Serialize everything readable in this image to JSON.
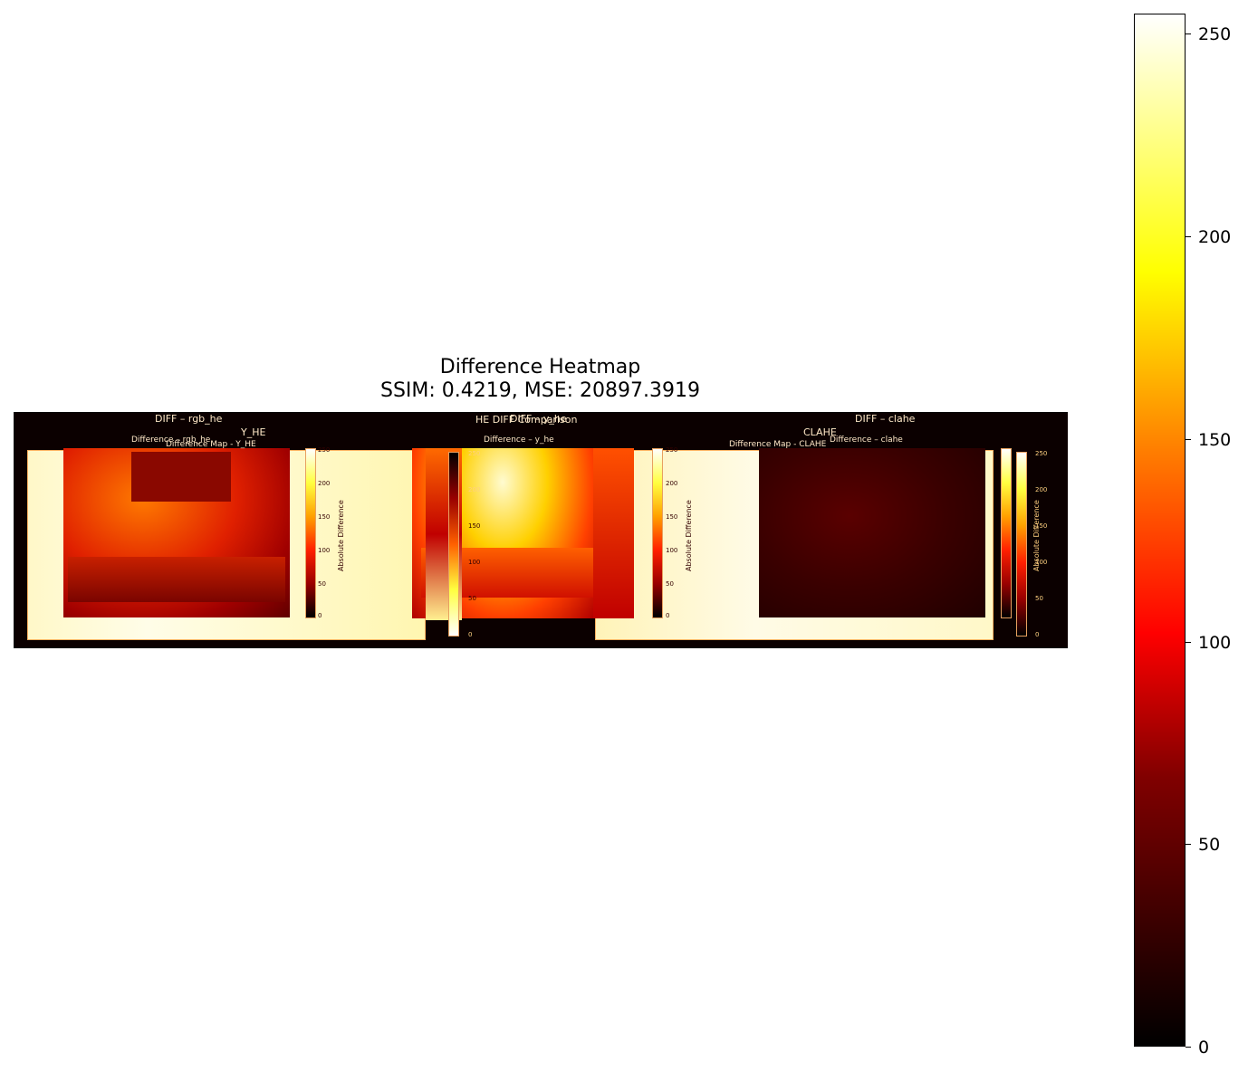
{
  "chart_data": {
    "type": "heatmap",
    "title": "Difference Heatmap",
    "subtitle": "SSIM: 0.4219, MSE: 20897.3919",
    "colormap": "hot",
    "colorbar": {
      "range": [
        0,
        255
      ],
      "ticks": [
        0,
        50,
        100,
        150,
        200,
        250
      ]
    },
    "embedded_labels": {
      "diff_rgb_he": "DIFF – rgb_he",
      "y_he": "Y_HE",
      "difference_rgb_he": "Difference – rgb_he",
      "difference_map_y_he": "Difference Map - Y_HE",
      "he_comparison": "HE DIFF Comparison",
      "diff_y_he": "DIFF – y_he",
      "difference_y_he": "Difference – y_he",
      "diff_clahe": "DIFF – clahe",
      "clahe": "CLAHE",
      "difference_map_clahe": "Difference Map - CLAHE",
      "difference_clahe": "Difference – clahe",
      "absolute_difference": "Absolute Difference"
    },
    "mini_ticks": [
      "250",
      "200",
      "150",
      "100",
      "50",
      "0"
    ],
    "colors": {
      "background_dark": "#0b0000",
      "bright": "#fff6d0",
      "red": "#e01000",
      "orange": "#ff6a00",
      "dark_red": "#5a0000"
    }
  }
}
